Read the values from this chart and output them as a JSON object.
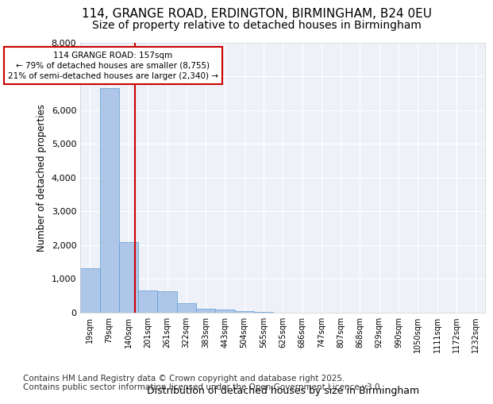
{
  "title": "114, GRANGE ROAD, ERDINGTON, BIRMINGHAM, B24 0EU",
  "subtitle": "Size of property relative to detached houses in Birmingham",
  "xlabel": "Distribution of detached houses by size in Birmingham",
  "ylabel": "Number of detached properties",
  "bar_values": [
    1310,
    6650,
    2100,
    650,
    640,
    285,
    125,
    100,
    50,
    15,
    5,
    3,
    2,
    1,
    1,
    1,
    0,
    0,
    0,
    0,
    0
  ],
  "bin_labels": [
    "19sqm",
    "79sqm",
    "140sqm",
    "201sqm",
    "261sqm",
    "322sqm",
    "383sqm",
    "443sqm",
    "504sqm",
    "565sqm",
    "625sqm",
    "686sqm",
    "747sqm",
    "807sqm",
    "868sqm",
    "929sqm",
    "990sqm",
    "1050sqm",
    "1111sqm",
    "1172sqm",
    "1232sqm"
  ],
  "bar_color": "#aec6e8",
  "bar_edge_color": "#5b9bd5",
  "bg_color": "#eef2f8",
  "grid_color": "#ffffff",
  "vline_x": 2.35,
  "vline_color": "#cc0000",
  "annotation_text": "114 GRANGE ROAD: 157sqm\n← 79% of detached houses are smaller (8,755)\n21% of semi-detached houses are larger (2,340) →",
  "annotation_box_color": "#cc0000",
  "ylim": [
    0,
    8000
  ],
  "yticks": [
    0,
    1000,
    2000,
    3000,
    4000,
    5000,
    6000,
    7000,
    8000
  ],
  "footer_text": "Contains HM Land Registry data © Crown copyright and database right 2025.\nContains public sector information licensed under the Open Government Licence v3.0.",
  "title_fontsize": 11,
  "subtitle_fontsize": 10,
  "footer_fontsize": 7.5
}
